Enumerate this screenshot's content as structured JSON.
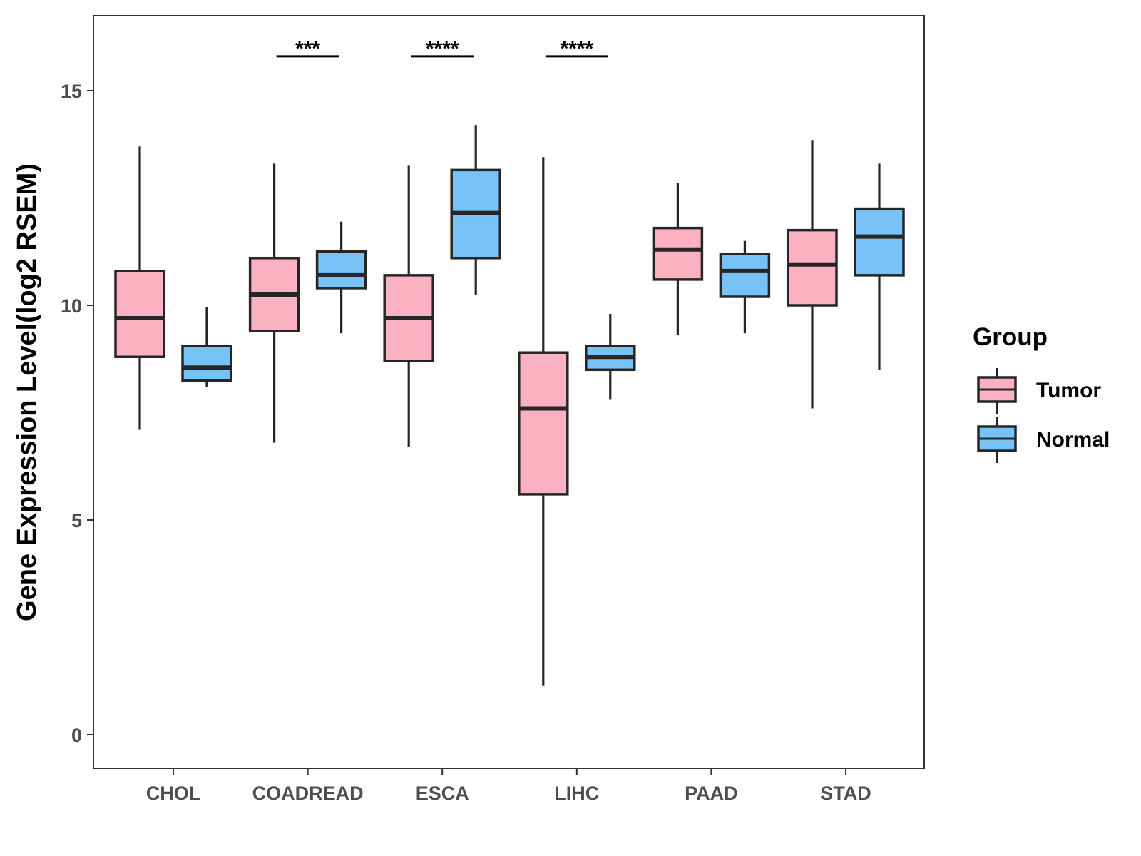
{
  "chart_data": {
    "type": "boxplot",
    "title": "",
    "xlabel": "",
    "ylabel": "Gene Expression Level(log2 RSEM)",
    "ylim": [
      -0.8,
      16.7
    ],
    "yticks": [
      0,
      5,
      10,
      15
    ],
    "grid": false,
    "categories": [
      "CHOL",
      "COADREAD",
      "ESCA",
      "LIHC",
      "PAAD",
      "STAD"
    ],
    "legend": {
      "title": "Group",
      "position": "right",
      "entries": [
        "Tumor",
        "Normal"
      ]
    },
    "series": [
      {
        "name": "Tumor",
        "color": "#fbb1c2",
        "boxes": [
          {
            "whisker_low": 7.1,
            "q1": 8.8,
            "median": 9.7,
            "q3": 10.8,
            "whisker_high": 13.7
          },
          {
            "whisker_low": 6.8,
            "q1": 9.4,
            "median": 10.25,
            "q3": 11.1,
            "whisker_high": 13.3
          },
          {
            "whisker_low": 6.7,
            "q1": 8.7,
            "median": 9.7,
            "q3": 10.7,
            "whisker_high": 13.25
          },
          {
            "whisker_low": 1.15,
            "q1": 5.6,
            "median": 7.6,
            "q3": 8.9,
            "whisker_high": 13.45
          },
          {
            "whisker_low": 9.3,
            "q1": 10.6,
            "median": 11.3,
            "q3": 11.8,
            "whisker_high": 12.85
          },
          {
            "whisker_low": 7.6,
            "q1": 10.0,
            "median": 10.95,
            "q3": 11.75,
            "whisker_high": 13.85
          }
        ]
      },
      {
        "name": "Normal",
        "color": "#77c3f8",
        "boxes": [
          {
            "whisker_low": 8.1,
            "q1": 8.25,
            "median": 8.55,
            "q3": 9.05,
            "whisker_high": 9.95
          },
          {
            "whisker_low": 9.35,
            "q1": 10.4,
            "median": 10.7,
            "q3": 11.25,
            "whisker_high": 11.95
          },
          {
            "whisker_low": 10.25,
            "q1": 11.1,
            "median": 12.15,
            "q3": 13.15,
            "whisker_high": 14.2
          },
          {
            "whisker_low": 7.8,
            "q1": 8.5,
            "median": 8.8,
            "q3": 9.05,
            "whisker_high": 9.8
          },
          {
            "whisker_low": 9.35,
            "q1": 10.2,
            "median": 10.8,
            "q3": 11.2,
            "whisker_high": 11.5
          },
          {
            "whisker_low": 8.5,
            "q1": 10.7,
            "median": 11.6,
            "q3": 12.25,
            "whisker_high": 13.3
          }
        ]
      }
    ],
    "significance": [
      {
        "category": "COADREAD",
        "label": "***",
        "y": 15.8
      },
      {
        "category": "ESCA",
        "label": "****",
        "y": 15.8
      },
      {
        "category": "LIHC",
        "label": "****",
        "y": 15.8
      }
    ]
  }
}
